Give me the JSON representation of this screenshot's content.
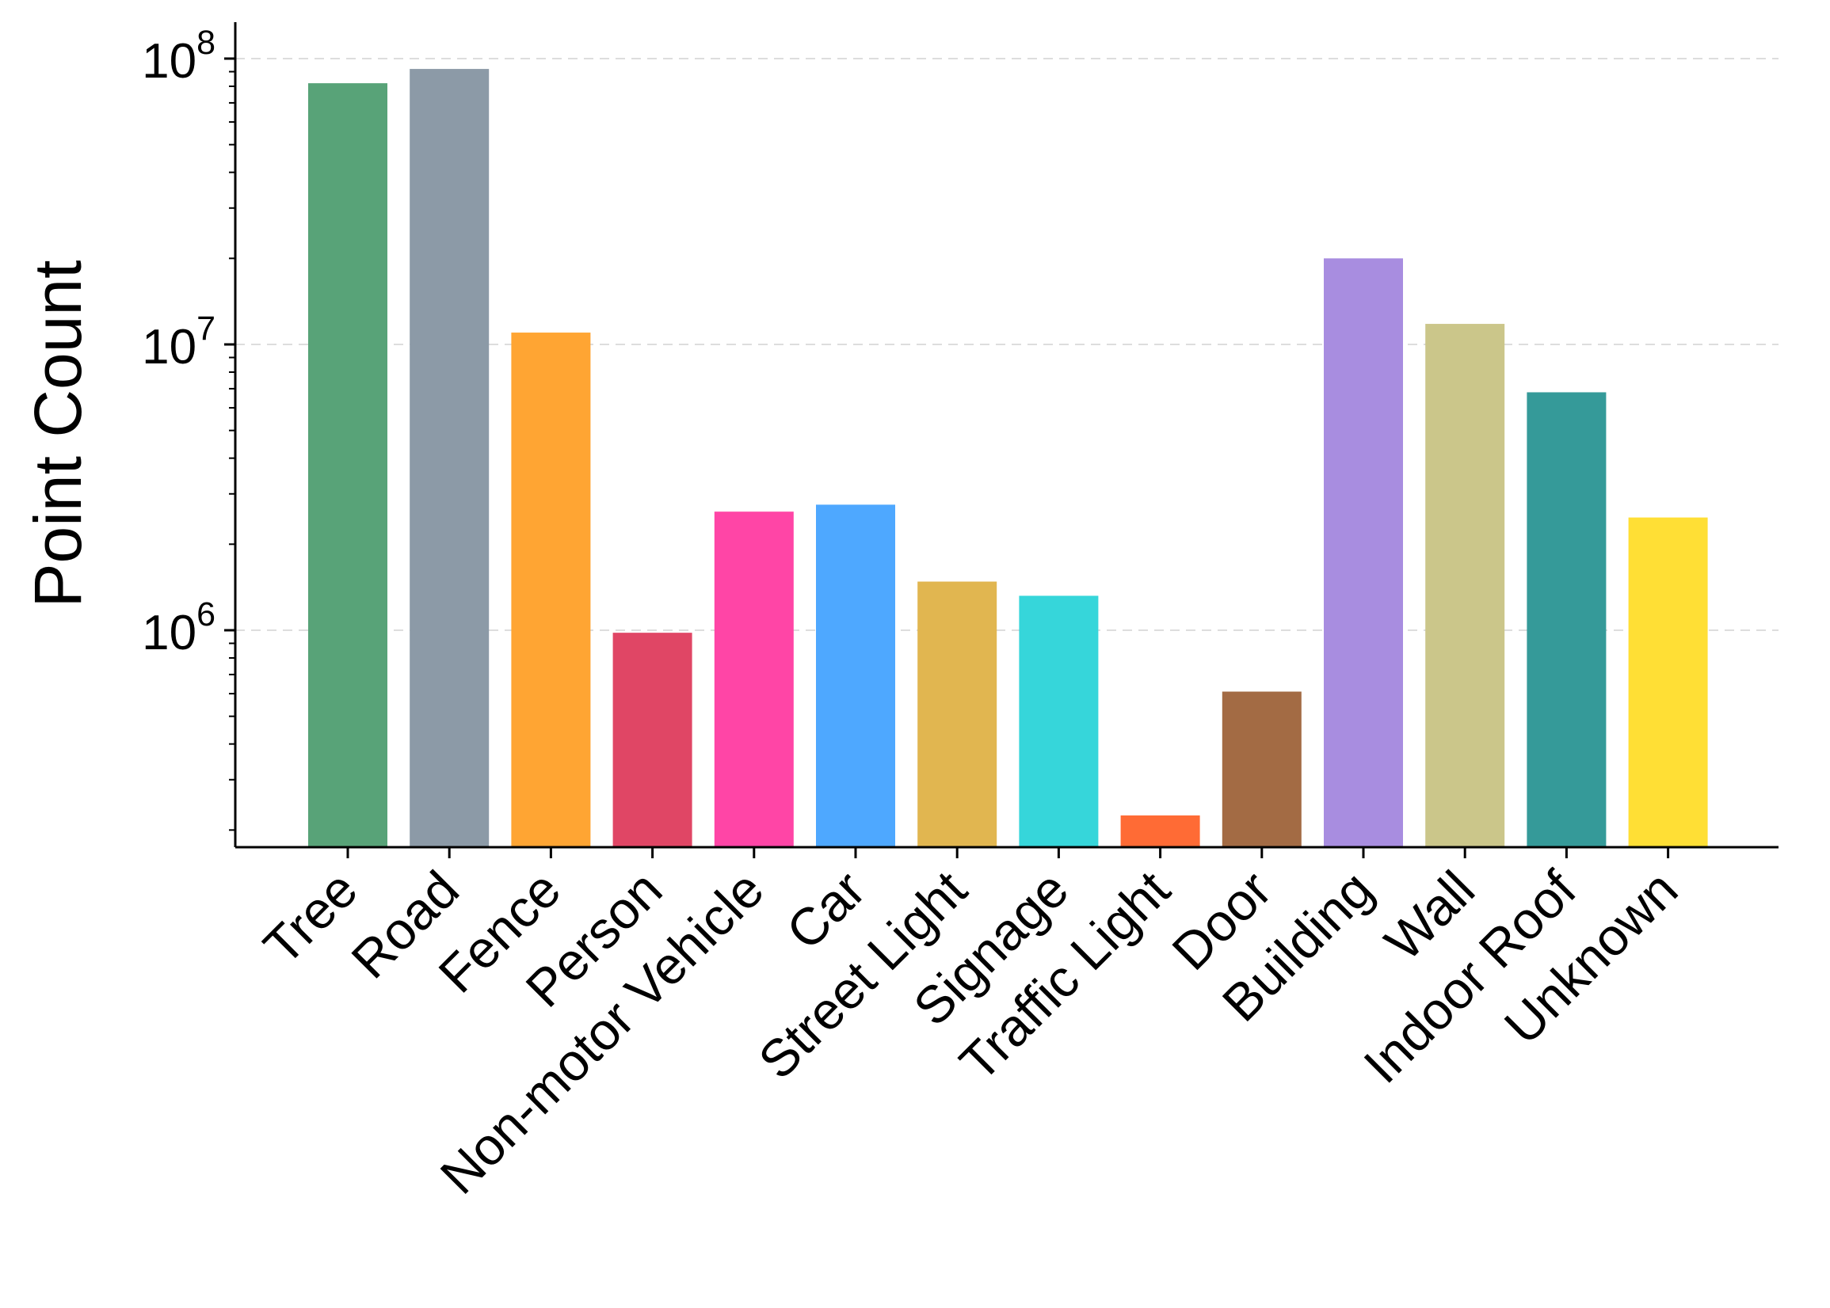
{
  "chart_data": {
    "type": "bar",
    "ylabel": "Point Count",
    "xlabel": "",
    "yscale": "log",
    "ylim": [
      180000,
      120000000
    ],
    "grid": "y-major-dashed",
    "categories": [
      "Tree",
      "Road",
      "Fence",
      "Person",
      "Non-motor Vehicle",
      "Car",
      "Street Light",
      "Signage",
      "Traffic Light",
      "Door",
      "Building",
      "Wall",
      "Indoor Roof",
      "Unknown"
    ],
    "values": [
      82000000,
      92000000,
      11000000,
      980000,
      2600000,
      2750000,
      1480000,
      1320000,
      225000,
      610000,
      20000000,
      11800000,
      6800000,
      2480000
    ],
    "colors": [
      "#58a378",
      "#8c9aa7",
      "#ffa533",
      "#e04665",
      "#ff45a6",
      "#4ea8ff",
      "#e1b650",
      "#36d6da",
      "#ff6b35",
      "#a36b44",
      "#a88de0",
      "#cbc68a",
      "#359a99",
      "#ffdf35"
    ],
    "yticks": [
      {
        "value": 1000000,
        "base": "10",
        "exp": "6"
      },
      {
        "value": 10000000,
        "base": "10",
        "exp": "7"
      },
      {
        "value": 100000000,
        "base": "10",
        "exp": "8"
      }
    ]
  }
}
